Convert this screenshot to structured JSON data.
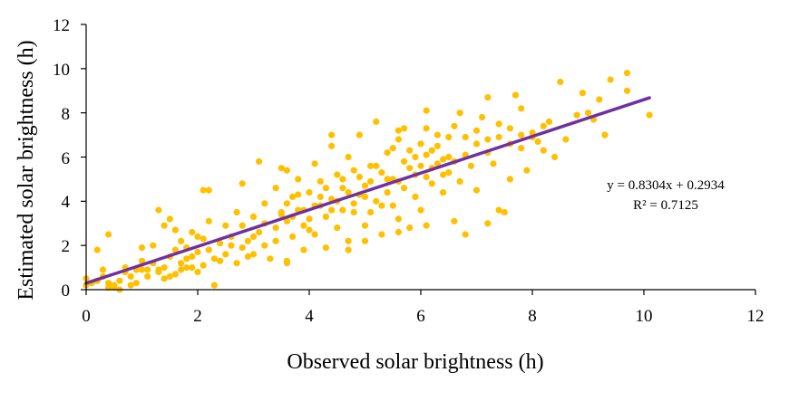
{
  "chart_data": {
    "type": "scatter",
    "title": "",
    "xlabel": "Observed solar brightness (h)",
    "ylabel": "Estimated solar brightness (h)",
    "xlim": [
      0,
      12
    ],
    "ylim": [
      0,
      12
    ],
    "xticks": [
      "0",
      "2",
      "4",
      "6",
      "8",
      "10",
      "12"
    ],
    "yticks": [
      "0",
      "2",
      "4",
      "6",
      "8",
      "10",
      "12"
    ],
    "grid": false,
    "legend": "none",
    "point_color": "#FFC000",
    "trendline_color": "#7030A0",
    "trendline": {
      "slope": 0.8304,
      "intercept": 0.2934,
      "x_range": [
        0,
        10.1
      ]
    },
    "equation_text": "y = 0.8304x + 0.2934",
    "r2_text": "R² = 0.7125",
    "points": [
      [
        0.0,
        0.5
      ],
      [
        0.0,
        0.2
      ],
      [
        0.1,
        0.3
      ],
      [
        0.2,
        1.8
      ],
      [
        0.3,
        0.6
      ],
      [
        0.3,
        0.9
      ],
      [
        0.4,
        2.5
      ],
      [
        0.4,
        0.3
      ],
      [
        0.5,
        0.1
      ],
      [
        0.5,
        0.2
      ],
      [
        0.6,
        0.4
      ],
      [
        0.7,
        1.0
      ],
      [
        0.7,
        0.8
      ],
      [
        0.8,
        0.2
      ],
      [
        0.9,
        0.3
      ],
      [
        1.0,
        1.9
      ],
      [
        1.0,
        0.9
      ],
      [
        1.1,
        0.6
      ],
      [
        1.2,
        1.2
      ],
      [
        1.3,
        0.8
      ],
      [
        1.3,
        3.6
      ],
      [
        1.4,
        2.9
      ],
      [
        1.4,
        0.5
      ],
      [
        1.5,
        3.2
      ],
      [
        1.5,
        1.5
      ],
      [
        1.6,
        2.7
      ],
      [
        1.6,
        0.7
      ],
      [
        1.7,
        2.2
      ],
      [
        1.7,
        1.2
      ],
      [
        1.8,
        1.9
      ],
      [
        1.8,
        1.0
      ],
      [
        1.9,
        1.5
      ],
      [
        1.9,
        2.6
      ],
      [
        2.0,
        0.8
      ],
      [
        2.0,
        1.7
      ],
      [
        2.1,
        2.3
      ],
      [
        2.2,
        4.5
      ],
      [
        2.2,
        3.1
      ],
      [
        2.3,
        0.2
      ],
      [
        2.3,
        1.4
      ],
      [
        2.4,
        2.1
      ],
      [
        2.5,
        2.9
      ],
      [
        2.5,
        1.6
      ],
      [
        2.6,
        2.4
      ],
      [
        2.7,
        1.2
      ],
      [
        2.7,
        3.5
      ],
      [
        2.8,
        1.9
      ],
      [
        2.8,
        4.8
      ],
      [
        2.9,
        2.2
      ],
      [
        3.0,
        3.3
      ],
      [
        3.0,
        1.6
      ],
      [
        3.1,
        5.8
      ],
      [
        3.1,
        2.6
      ],
      [
        3.2,
        3.9
      ],
      [
        3.2,
        2.0
      ],
      [
        3.3,
        1.4
      ],
      [
        3.4,
        4.6
      ],
      [
        3.4,
        2.8
      ],
      [
        3.5,
        3.5
      ],
      [
        3.5,
        5.5
      ],
      [
        3.6,
        1.2
      ],
      [
        3.6,
        3.1
      ],
      [
        3.7,
        4.2
      ],
      [
        3.7,
        2.4
      ],
      [
        3.8,
        5.0
      ],
      [
        3.8,
        3.6
      ],
      [
        3.9,
        1.8
      ],
      [
        3.9,
        2.9
      ],
      [
        4.0,
        4.4
      ],
      [
        4.0,
        3.2
      ],
      [
        4.1,
        5.7
      ],
      [
        4.1,
        2.5
      ],
      [
        4.2,
        3.8
      ],
      [
        4.2,
        4.9
      ],
      [
        4.3,
        1.9
      ],
      [
        4.3,
        3.3
      ],
      [
        4.4,
        6.5
      ],
      [
        4.4,
        4.1
      ],
      [
        4.5,
        2.8
      ],
      [
        4.5,
        5.2
      ],
      [
        4.6,
        3.6
      ],
      [
        4.6,
        4.6
      ],
      [
        4.7,
        6.0
      ],
      [
        4.7,
        2.2
      ],
      [
        4.8,
        5.4
      ],
      [
        4.8,
        3.9
      ],
      [
        4.9,
        4.3
      ],
      [
        4.9,
        7.0
      ],
      [
        5.0,
        2.9
      ],
      [
        5.0,
        4.7
      ],
      [
        5.1,
        5.6
      ],
      [
        5.1,
        3.5
      ],
      [
        5.2,
        4.0
      ],
      [
        5.2,
        7.6
      ],
      [
        5.3,
        5.3
      ],
      [
        5.3,
        2.5
      ],
      [
        5.4,
        4.4
      ],
      [
        5.4,
        6.2
      ],
      [
        5.5,
        3.8
      ],
      [
        5.5,
        5.0
      ],
      [
        5.6,
        6.8
      ],
      [
        5.6,
        3.2
      ],
      [
        5.7,
        4.6
      ],
      [
        5.7,
        7.3
      ],
      [
        5.8,
        5.5
      ],
      [
        5.8,
        2.8
      ],
      [
        5.9,
        6.0
      ],
      [
        5.9,
        4.2
      ],
      [
        6.0,
        6.6
      ],
      [
        6.0,
        3.6
      ],
      [
        6.1,
        5.1
      ],
      [
        6.1,
        8.1
      ],
      [
        6.2,
        4.8
      ],
      [
        6.2,
        6.3
      ],
      [
        6.3,
        5.7
      ],
      [
        6.3,
        7.0
      ],
      [
        6.4,
        4.4
      ],
      [
        6.4,
        5.9
      ],
      [
        6.5,
        6.9
      ],
      [
        6.5,
        5.3
      ],
      [
        6.6,
        7.4
      ],
      [
        6.7,
        4.9
      ],
      [
        6.7,
        8.0
      ],
      [
        6.8,
        2.5
      ],
      [
        6.8,
        6.1
      ],
      [
        6.9,
        5.6
      ],
      [
        7.0,
        6.6
      ],
      [
        7.0,
        4.5
      ],
      [
        7.1,
        7.8
      ],
      [
        7.2,
        3.0
      ],
      [
        7.2,
        6.2
      ],
      [
        7.3,
        5.7
      ],
      [
        7.4,
        6.9
      ],
      [
        7.5,
        3.5
      ],
      [
        7.6,
        7.3
      ],
      [
        7.6,
        5.0
      ],
      [
        7.7,
        8.8
      ],
      [
        7.8,
        6.4
      ],
      [
        7.9,
        5.4
      ],
      [
        8.0,
        7.1
      ],
      [
        8.1,
        6.7
      ],
      [
        8.2,
        6.3
      ],
      [
        8.3,
        7.6
      ],
      [
        8.4,
        6.0
      ],
      [
        8.5,
        9.4
      ],
      [
        8.6,
        6.8
      ],
      [
        8.8,
        7.9
      ],
      [
        9.0,
        8.0
      ],
      [
        9.1,
        7.7
      ],
      [
        9.2,
        8.6
      ],
      [
        9.3,
        7.0
      ],
      [
        9.4,
        9.5
      ],
      [
        9.7,
        9.8
      ],
      [
        9.7,
        9.0
      ],
      [
        10.1,
        7.9
      ],
      [
        0.6,
        0.0
      ],
      [
        0.8,
        0.6
      ],
      [
        1.0,
        1.3
      ],
      [
        1.2,
        2.0
      ],
      [
        1.4,
        1.0
      ],
      [
        1.6,
        1.8
      ],
      [
        1.8,
        1.4
      ],
      [
        2.0,
        2.4
      ],
      [
        2.2,
        1.8
      ],
      [
        2.4,
        1.3
      ],
      [
        2.6,
        2.0
      ],
      [
        2.8,
        2.9
      ],
      [
        3.0,
        2.4
      ],
      [
        3.2,
        3.0
      ],
      [
        3.4,
        2.2
      ],
      [
        3.5,
        3.4
      ],
      [
        3.6,
        3.9
      ],
      [
        3.7,
        3.3
      ],
      [
        3.8,
        4.3
      ],
      [
        3.9,
        3.6
      ],
      [
        4.0,
        2.7
      ],
      [
        4.1,
        3.8
      ],
      [
        4.2,
        4.2
      ],
      [
        4.3,
        4.6
      ],
      [
        4.4,
        3.6
      ],
      [
        4.5,
        4.0
      ],
      [
        4.6,
        5.0
      ],
      [
        4.7,
        4.4
      ],
      [
        4.8,
        3.5
      ],
      [
        4.9,
        5.1
      ],
      [
        5.0,
        4.2
      ],
      [
        5.1,
        4.9
      ],
      [
        5.2,
        5.6
      ],
      [
        5.3,
        3.8
      ],
      [
        5.4,
        5.0
      ],
      [
        5.5,
        6.4
      ],
      [
        5.6,
        4.9
      ],
      [
        5.7,
        5.8
      ],
      [
        5.8,
        6.3
      ],
      [
        5.9,
        5.2
      ],
      [
        6.0,
        5.6
      ],
      [
        6.1,
        6.1
      ],
      [
        6.2,
        5.5
      ],
      [
        6.3,
        6.5
      ],
      [
        6.4,
        5.2
      ],
      [
        6.5,
        6.0
      ],
      [
        6.6,
        5.8
      ],
      [
        6.8,
        6.9
      ],
      [
        7.0,
        7.2
      ],
      [
        7.2,
        6.8
      ],
      [
        7.4,
        7.5
      ],
      [
        7.6,
        6.6
      ],
      [
        7.8,
        7.0
      ],
      [
        8.0,
        6.9
      ],
      [
        8.2,
        7.4
      ],
      [
        2.1,
        4.5
      ],
      [
        3.6,
        5.4
      ],
      [
        4.4,
        7.0
      ],
      [
        5.6,
        7.2
      ],
      [
        6.1,
        7.3
      ],
      [
        7.2,
        8.7
      ],
      [
        7.8,
        8.2
      ],
      [
        8.9,
        8.9
      ],
      [
        1.3,
        0.9
      ],
      [
        1.5,
        0.6
      ],
      [
        1.7,
        0.9
      ],
      [
        2.1,
        1.1
      ],
      [
        2.9,
        1.5
      ],
      [
        3.6,
        1.3
      ],
      [
        4.7,
        1.8
      ],
      [
        5.0,
        2.2
      ],
      [
        5.6,
        2.6
      ],
      [
        6.1,
        2.9
      ],
      [
        6.6,
        3.1
      ],
      [
        7.4,
        3.6
      ],
      [
        0.2,
        0.4
      ],
      [
        0.4,
        0.1
      ],
      [
        0.9,
        0.9
      ],
      [
        1.1,
        0.9
      ],
      [
        1.9,
        1.0
      ]
    ]
  }
}
